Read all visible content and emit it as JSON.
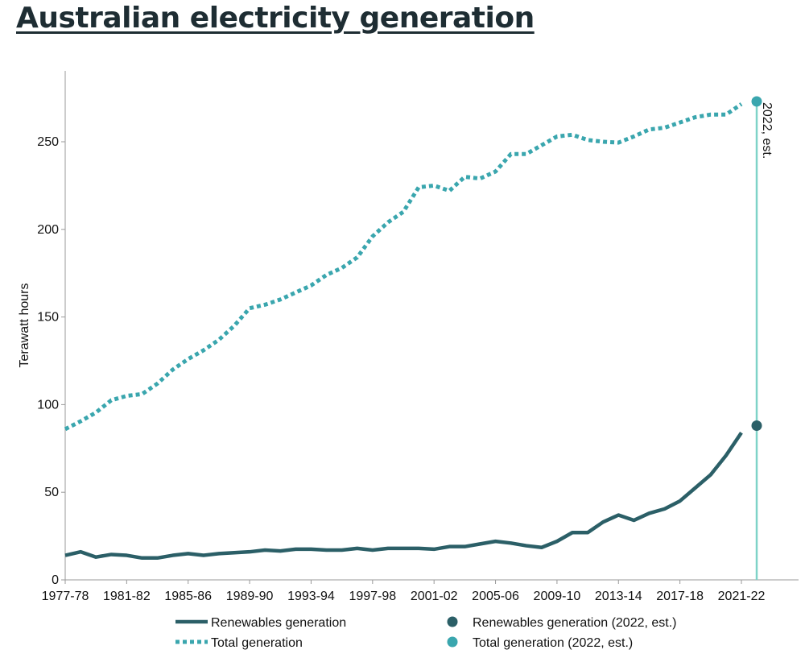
{
  "page": {
    "title": "Australian electricity generation"
  },
  "colors": {
    "renewables": "#2b5f67",
    "total": "#3aa6ae",
    "marker_line": "#7fd3c8",
    "axis": "#999999"
  },
  "chart_data": {
    "type": "line",
    "xlabel": "",
    "ylabel": "Terawatt hours",
    "ylim": [
      0,
      280
    ],
    "yticks": [
      0,
      50,
      100,
      150,
      200,
      250
    ],
    "categories": [
      "1977-78",
      "1978-79",
      "1979-80",
      "1980-81",
      "1981-82",
      "1982-83",
      "1983-84",
      "1984-85",
      "1985-86",
      "1986-87",
      "1987-88",
      "1988-89",
      "1989-90",
      "1990-91",
      "1991-92",
      "1992-93",
      "1993-94",
      "1994-95",
      "1995-96",
      "1996-97",
      "1997-98",
      "1998-99",
      "1999-00",
      "2000-01",
      "2001-02",
      "2002-03",
      "2003-04",
      "2004-05",
      "2005-06",
      "2006-07",
      "2007-08",
      "2008-09",
      "2009-10",
      "2010-11",
      "2011-12",
      "2012-13",
      "2013-14",
      "2014-15",
      "2015-16",
      "2016-17",
      "2017-18",
      "2018-19",
      "2019-20",
      "2020-21",
      "2021-22"
    ],
    "xtick_labels": [
      "1977-78",
      "1981-82",
      "1985-86",
      "1989-90",
      "1993-94",
      "1997-98",
      "2001-02",
      "2005-06",
      "2009-10",
      "2013-14",
      "2017-18",
      "2021-22"
    ],
    "series": [
      {
        "name": "Renewables generation",
        "style": "solid",
        "values": [
          14,
          16,
          13,
          14.5,
          14,
          12.5,
          12.5,
          14,
          15,
          14,
          15,
          15.5,
          16,
          17,
          16.5,
          17.5,
          17.5,
          17,
          17,
          18,
          17,
          18,
          18,
          18,
          17.5,
          19,
          19,
          20.5,
          22,
          21,
          19.5,
          18.5,
          22,
          27,
          27,
          33,
          37,
          34,
          38,
          40.5,
          45,
          52.5,
          60,
          71,
          84
        ]
      },
      {
        "name": "Total generation",
        "style": "dotted",
        "values": [
          86,
          90.5,
          95.5,
          102.5,
          105,
          106,
          112,
          120,
          126,
          131,
          137,
          145,
          155,
          157,
          160,
          164,
          168,
          174,
          178,
          184,
          196,
          204,
          210,
          224,
          225,
          222,
          230,
          229,
          233,
          243,
          243,
          248,
          253,
          254,
          251,
          250,
          249.5,
          253,
          257,
          258,
          261,
          264,
          265.5,
          265.5,
          271.5
        ]
      }
    ],
    "estimates": [
      {
        "name": "Renewables generation (2022, est.)",
        "value": 88
      },
      {
        "name": "Total generation (2022, est.)",
        "value": 273
      }
    ],
    "annotation": "2022, est."
  }
}
